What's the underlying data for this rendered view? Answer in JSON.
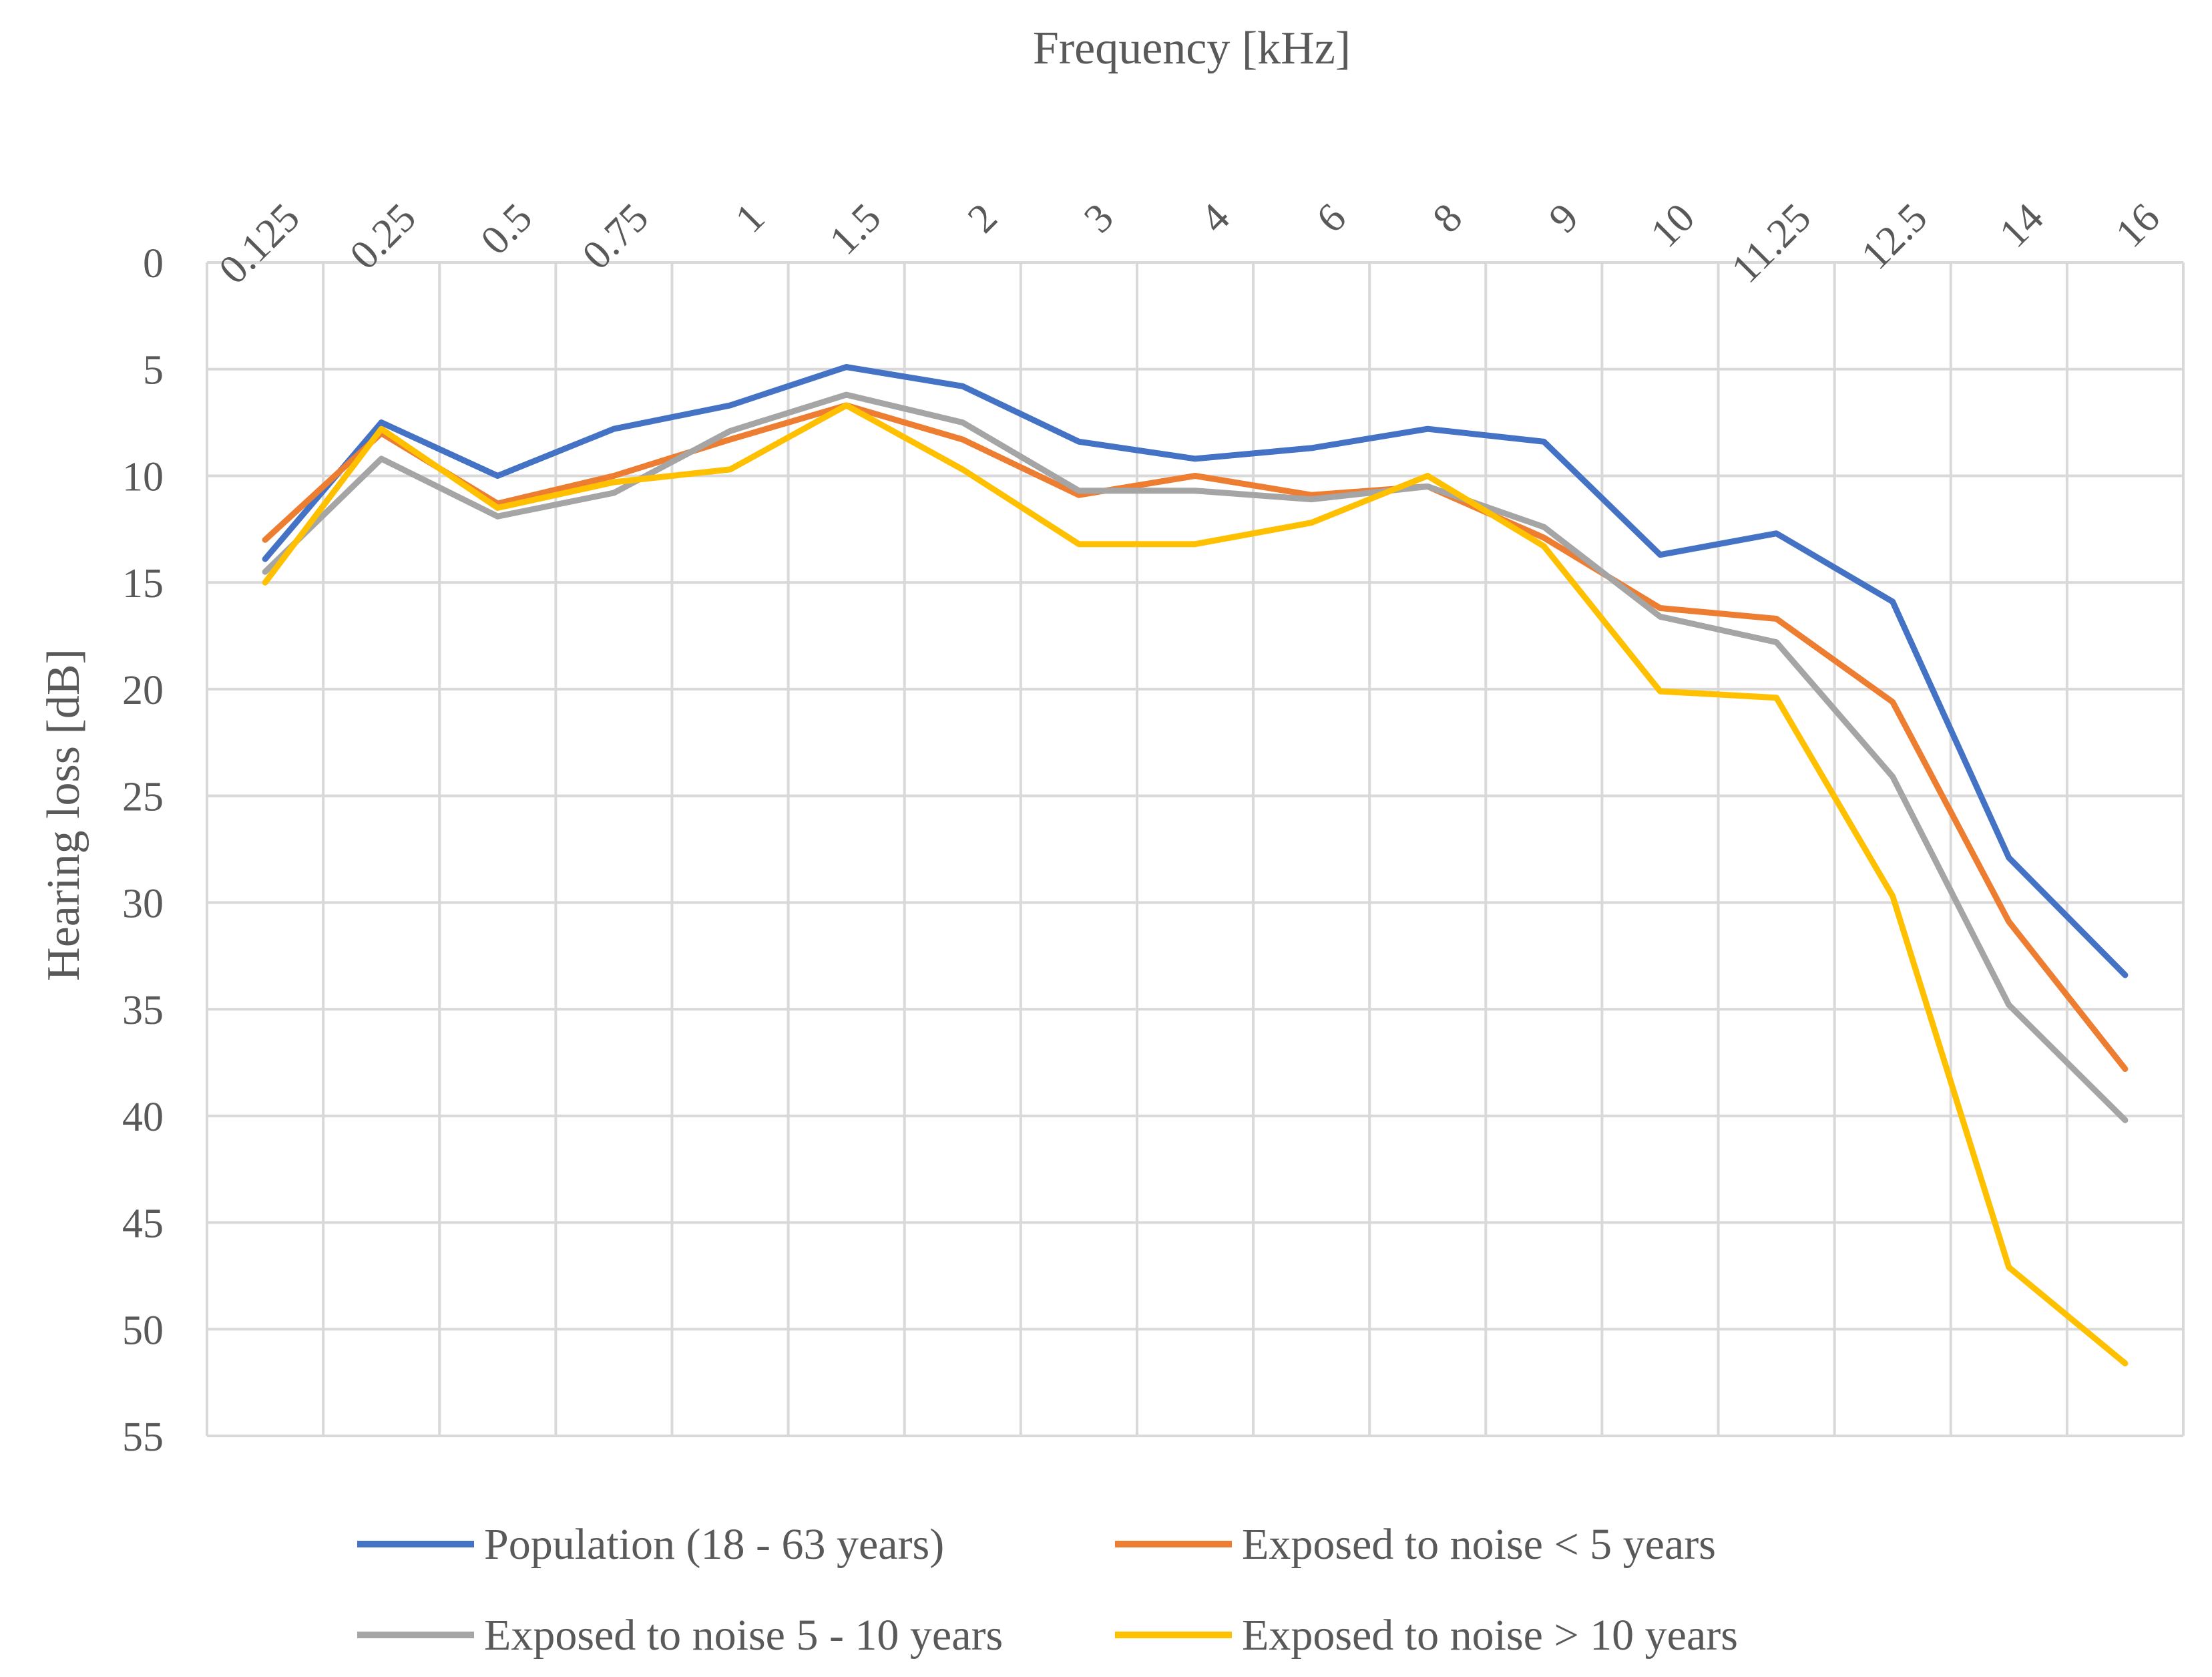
{
  "chart_data": {
    "type": "line",
    "title": "",
    "xlabel": "Frequency [kHz]",
    "ylabel": "Hearing loss [dB]",
    "x_axis_position": "top",
    "y_axis_inverted": true,
    "ylim": [
      0,
      55
    ],
    "ytick_step": 5,
    "yticks": [
      "0",
      "5",
      "10",
      "15",
      "20",
      "25",
      "30",
      "35",
      "40",
      "45",
      "50",
      "55"
    ],
    "categories": [
      "0.125",
      "0.25",
      "0.5",
      "0.75",
      "1",
      "1.5",
      "2",
      "3",
      "4",
      "6",
      "8",
      "9",
      "10",
      "11.25",
      "12.5",
      "14",
      "16"
    ],
    "grid": true,
    "legend_position": "bottom",
    "series": [
      {
        "name": "Population (18 - 63 years)",
        "color": "#4472C4",
        "values": [
          13.9,
          7.5,
          10.0,
          7.8,
          6.7,
          4.9,
          5.8,
          8.4,
          9.2,
          8.7,
          7.8,
          8.4,
          13.7,
          12.7,
          15.9,
          27.9,
          33.4
        ]
      },
      {
        "name": "Exposed to noise < 5 years",
        "color": "#ED7D31",
        "values": [
          13.0,
          8.0,
          11.3,
          10.0,
          8.3,
          6.7,
          8.3,
          10.9,
          10.0,
          10.9,
          10.5,
          12.9,
          16.2,
          16.7,
          20.6,
          30.9,
          37.8
        ]
      },
      {
        "name": "Exposed to noise 5 - 10 years",
        "color": "#A5A5A5",
        "values": [
          14.5,
          9.2,
          11.9,
          10.8,
          7.9,
          6.2,
          7.5,
          10.7,
          10.7,
          11.1,
          10.5,
          12.4,
          16.6,
          17.8,
          24.1,
          34.8,
          40.2
        ]
      },
      {
        "name": "Exposed to noise > 10 years",
        "color": "#FFC000",
        "values": [
          15.0,
          7.8,
          11.5,
          10.3,
          9.7,
          6.7,
          9.7,
          13.2,
          13.2,
          12.2,
          10.0,
          13.3,
          20.1,
          20.4,
          29.7,
          47.1,
          51.6
        ]
      }
    ]
  }
}
